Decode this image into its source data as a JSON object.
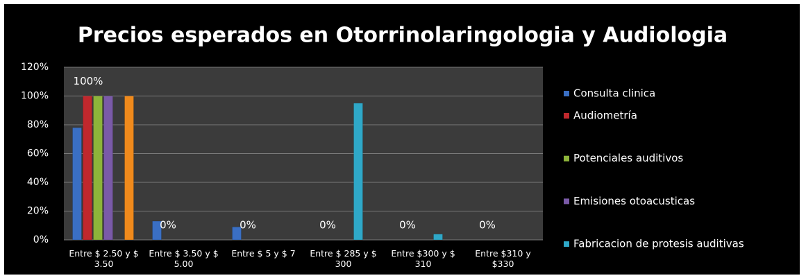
{
  "chart_data": {
    "type": "bar",
    "title": "Precios esperados en Otorrinolaringologia y Audiologia",
    "categories": [
      "Entre $ 2.50 y $ 3.50",
      "Entre $ 3.50 y $ 5.00",
      "Entre $ 5 y $ 7",
      "Entre $ 285 y $ 300",
      "Entre $300 y $ 310",
      "Entre $310 y $330"
    ],
    "series": [
      {
        "name": "Consulta clinica",
        "color": "#3a6fc4",
        "values": [
          78,
          13,
          9,
          0,
          0,
          0
        ]
      },
      {
        "name": "Audiometría",
        "color": "#c0282d",
        "values": [
          100,
          0,
          0,
          0,
          0,
          0
        ],
        "value_labels": [
          "100%",
          "0%",
          "0%",
          "0%",
          "0%",
          "0%"
        ]
      },
      {
        "name": "Potenciales auditivos",
        "color": "#8db43a",
        "values": [
          100,
          0,
          0,
          0,
          0,
          0
        ]
      },
      {
        "name": "Emisiones otoacusticas",
        "color": "#7a5aa8",
        "values": [
          100,
          0,
          0,
          0,
          0,
          0
        ]
      },
      {
        "name": "Fabricacion de protesis auditivas",
        "color": "#2fa8c8",
        "values": [
          0,
          0,
          0,
          95,
          4,
          0
        ]
      },
      {
        "name": null,
        "color": "#f08a1c",
        "values": [
          100,
          0,
          0,
          0,
          0,
          0
        ]
      }
    ],
    "ylim": [
      0,
      120
    ],
    "yticks": [
      {
        "value": 0,
        "label": "0%"
      },
      {
        "value": 20,
        "label": "20%"
      },
      {
        "value": 40,
        "label": "40%"
      },
      {
        "value": 60,
        "label": "60%"
      },
      {
        "value": 80,
        "label": "80%"
      },
      {
        "value": 100,
        "label": "100%"
      },
      {
        "value": 120,
        "label": "120%"
      }
    ],
    "grid": true
  }
}
